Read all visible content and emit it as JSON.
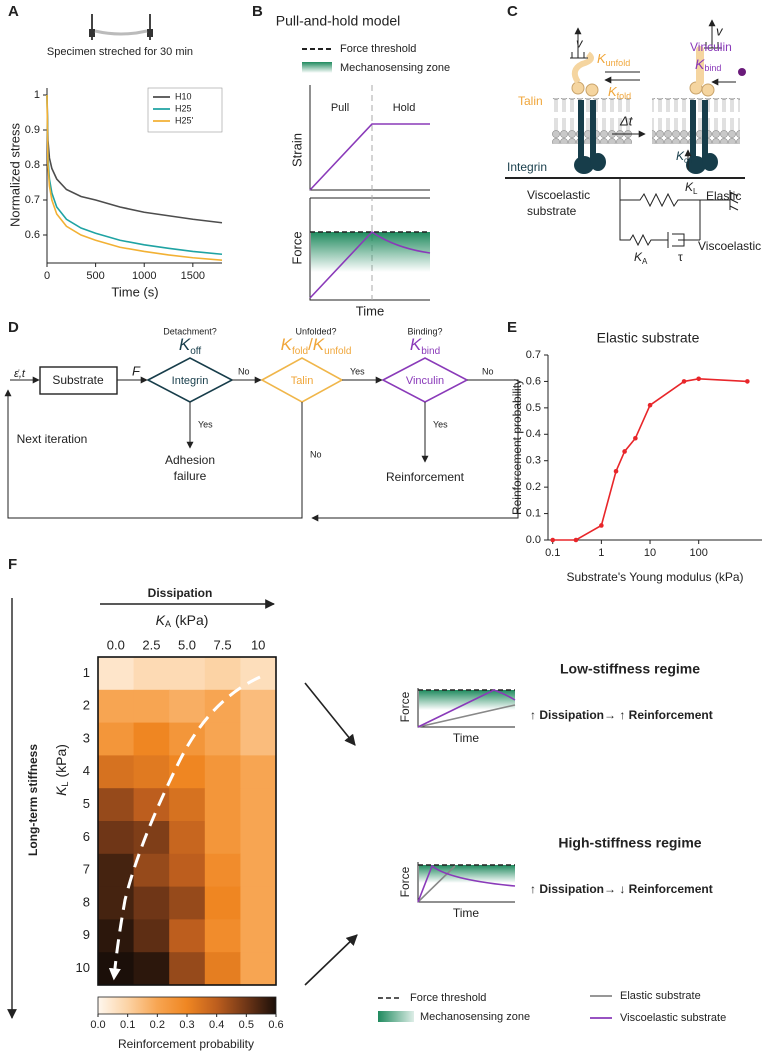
{
  "chart_data": [
    {
      "type": "line",
      "ylabel": "Normalized stress",
      "xlabel": "Time (s)",
      "x": [
        0,
        10,
        25,
        50,
        100,
        200,
        350,
        500,
        750,
        1000,
        1250,
        1500,
        1800
      ],
      "series": [
        {
          "name": "H10",
          "color": "#4d4d4d",
          "values": [
            1.0,
            0.87,
            0.82,
            0.79,
            0.76,
            0.73,
            0.71,
            0.7,
            0.68,
            0.665,
            0.655,
            0.645,
            0.635
          ]
        },
        {
          "name": "H25",
          "color": "#1fa3a3",
          "values": [
            1.0,
            0.82,
            0.76,
            0.72,
            0.68,
            0.645,
            0.62,
            0.605,
            0.585,
            0.572,
            0.562,
            0.553,
            0.545
          ]
        },
        {
          "name": "H25'",
          "color": "#f2b134",
          "values": [
            1.0,
            0.8,
            0.74,
            0.7,
            0.66,
            0.625,
            0.6,
            0.585,
            0.565,
            0.553,
            0.543,
            0.535,
            0.528
          ]
        }
      ],
      "xlim": [
        0,
        1800
      ],
      "xticks": [
        0,
        500,
        1000,
        1500
      ],
      "ylim": [
        0.52,
        1.02
      ],
      "yticks": [
        0.6,
        0.7,
        0.8,
        0.9,
        1
      ],
      "legend": "upper right"
    },
    {
      "type": "line",
      "title": "Elastic substrate",
      "xlabel": "Substrate's Young modulus (kPa)",
      "ylabel": "Reinforcement probability",
      "x": [
        0.1,
        0.3,
        1,
        2,
        3,
        5,
        10,
        50,
        100,
        1000
      ],
      "values": [
        0,
        0,
        0.055,
        0.26,
        0.335,
        0.385,
        0.51,
        0.6,
        0.61,
        0.6
      ],
      "color": "#e8262a",
      "markers": true,
      "xscale": "log",
      "xlim": [
        0.08,
        2000
      ],
      "xticks": [
        0.1,
        1,
        10,
        100
      ],
      "ylim": [
        0,
        0.7
      ],
      "yticks": [
        {
          "value": 0,
          "label": "0.0"
        },
        0.1,
        0.2,
        0.3,
        0.4,
        0.5,
        0.6,
        0.7
      ]
    },
    {
      "type": "heatmap",
      "xlabel": {
        "symbol": "K",
        "sub": "A",
        "unit": "(kPa)"
      },
      "ylabel": {
        "symbol": "K",
        "sub": "L",
        "unit": "(kPa)"
      },
      "x_categories": [
        "0.0",
        "2.5",
        "5.0",
        "7.5",
        "10"
      ],
      "y_categories": [
        "1",
        "2",
        "3",
        "4",
        "5",
        "6",
        "7",
        "8",
        "9",
        "10"
      ],
      "values": [
        [
          0.05,
          0.08,
          0.08,
          0.1,
          0.07
        ],
        [
          0.2,
          0.2,
          0.18,
          0.2,
          0.15
        ],
        [
          0.25,
          0.3,
          0.25,
          0.2,
          0.15
        ],
        [
          0.35,
          0.33,
          0.3,
          0.25,
          0.2
        ],
        [
          0.45,
          0.4,
          0.35,
          0.25,
          0.2
        ],
        [
          0.5,
          0.48,
          0.38,
          0.25,
          0.2
        ],
        [
          0.55,
          0.45,
          0.4,
          0.28,
          0.2
        ],
        [
          0.55,
          0.5,
          0.45,
          0.3,
          0.2
        ],
        [
          0.58,
          0.52,
          0.4,
          0.28,
          0.2
        ],
        [
          0.6,
          0.58,
          0.45,
          0.32,
          0.2
        ]
      ],
      "colormap": [
        "#fff7ee",
        "#fcd3a5",
        "#f7a552",
        "#ef8622",
        "#bd5e1e",
        "#6f3617",
        "#1b0f09"
      ],
      "clim": [
        0,
        0.6
      ],
      "cbar_ticks": [
        {
          "value": 0,
          "label": "0.0"
        },
        0.1,
        0.2,
        0.3,
        0.4,
        0.5,
        0.6
      ],
      "colorbar_label": "Reinforcement probability"
    }
  ],
  "panels": {
    "A": {
      "label": "A",
      "caption": "Specimen streched for 30 min"
    },
    "B": {
      "label": "B",
      "title": "Pull-and-hold model",
      "legend": [
        "Force threshold",
        "Mechanosensing zone"
      ],
      "phases": [
        "Pull",
        "Hold"
      ],
      "ylabels": [
        "Strain",
        "Force"
      ],
      "xlabel": "Time"
    },
    "C": {
      "label": "C",
      "velocity": [
        "v",
        "v"
      ],
      "talin": "Talin",
      "vinculin": "Vinculin",
      "integrin": "Integrin",
      "substrate": [
        "Viscoelastic",
        "substrate"
      ],
      "k_unfold": {
        "symbol": "K",
        "sub": "unfold"
      },
      "k_fold": {
        "symbol": "K",
        "sub": "fold"
      },
      "delta_t": "Δt",
      "k_bind": {
        "symbol": "K",
        "sub": "bind"
      },
      "k_off": {
        "symbol": "K",
        "sub": "off"
      },
      "k_l": {
        "symbol": "K",
        "sub": "L"
      },
      "k_a": {
        "symbol": "K",
        "sub": "A"
      },
      "tau": "τ",
      "elastic": "Elastic",
      "viscoelastic": "Viscoelastic"
    },
    "D": {
      "label": "D",
      "input": "ε̇,t",
      "substrate": "Substrate",
      "force": "F",
      "integrin": {
        "name": "Integrin",
        "question": "Detachment?",
        "rate": {
          "symbol": "K",
          "sub": "off"
        }
      },
      "talin": {
        "name": "Talin",
        "question": "Unfolded?",
        "rate": {
          "num": {
            "symbol": "K",
            "sub": "fold"
          },
          "slash": "/",
          "den": {
            "symbol": "K",
            "sub": "unfold"
          }
        }
      },
      "vinculin": {
        "name": "Vinculin",
        "question": "Binding?",
        "rate": {
          "symbol": "K",
          "sub": "bind"
        }
      },
      "branches": [
        "No",
        "Yes",
        "No",
        "Yes",
        "No",
        "Yes"
      ],
      "outcomes": [
        [
          "Adhesion",
          "failure"
        ],
        "Reinforcement"
      ],
      "loop": "Next iteration"
    },
    "E": {
      "label": "E"
    },
    "F": {
      "label": "F",
      "dissipation": "Dissipation",
      "stiffness": "Long-term stiffness",
      "low": {
        "title": "Low-stiffness regime",
        "ylabel": "Force",
        "xlabel": "Time",
        "statement": "↑ Dissipation→ ↑ Reinforcement"
      },
      "high": {
        "title": "High-stiffness regime",
        "ylabel": "Force",
        "xlabel": "Time",
        "statement": "↑ Dissipation→ ↓ Reinforcement"
      },
      "legend": [
        "Force threshold",
        "Mechanosensing zone",
        "Elastic substrate",
        "Viscoelastic substrate"
      ]
    }
  }
}
